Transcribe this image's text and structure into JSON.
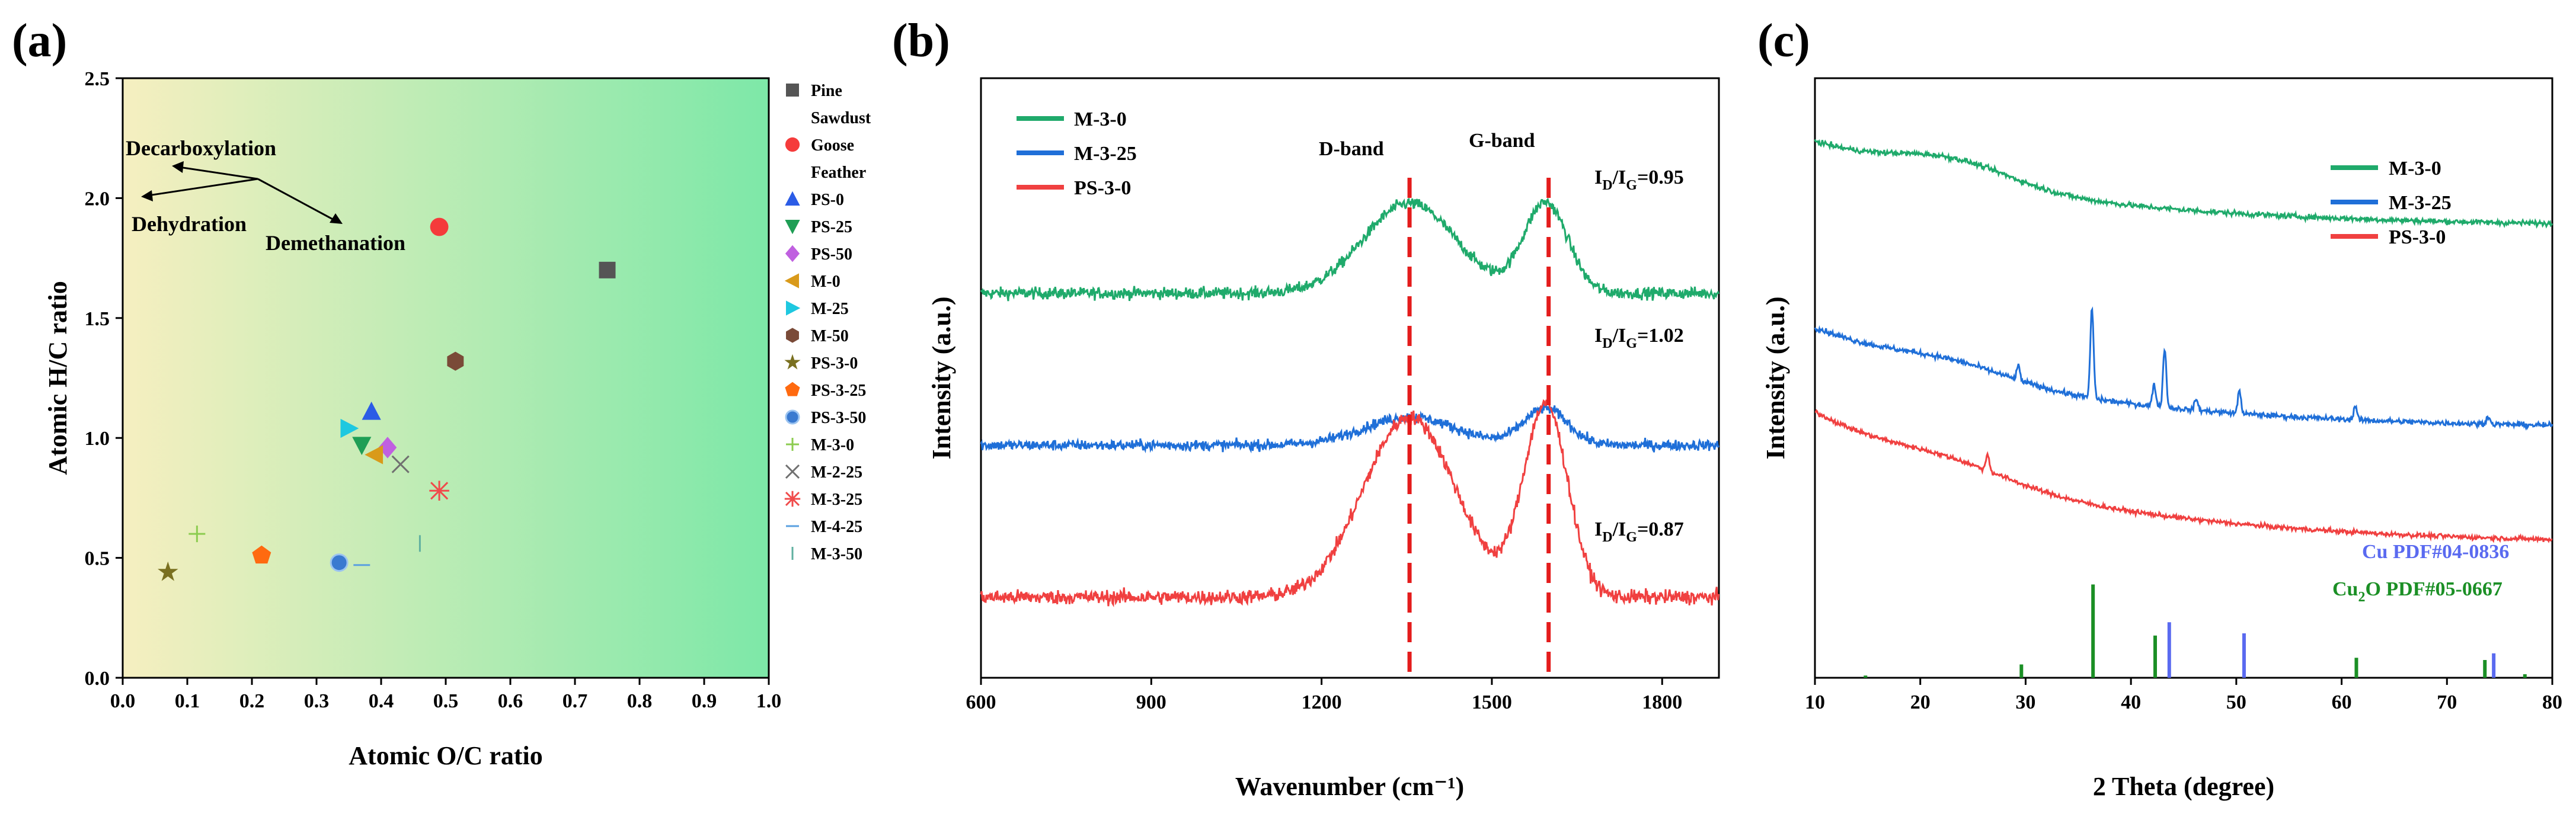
{
  "chart_data": [
    {
      "panel": "(a)",
      "type": "scatter",
      "title": "",
      "xlabel": "Atomic O/C ratio",
      "ylabel": "Atomic H/C ratio",
      "xlim": [
        0.0,
        1.0
      ],
      "ylim": [
        0.0,
        2.5
      ],
      "xticks": [
        "0.0",
        "0.1",
        "0.2",
        "0.3",
        "0.4",
        "0.5",
        "0.6",
        "0.7",
        "0.8",
        "0.9",
        "1.0"
      ],
      "yticks": [
        "0.0",
        "0.5",
        "1.0",
        "1.5",
        "2.0",
        "2.5"
      ],
      "background": {
        "from": "#f6efc0",
        "to": "#7de8a8"
      },
      "series": [
        {
          "name": "Pine Sawdust",
          "lines": [
            "Pine",
            "Sawdust"
          ],
          "marker": "square",
          "color": "#555555",
          "x": 0.75,
          "y": 1.7
        },
        {
          "name": "Goose Feather",
          "lines": [
            "Goose",
            "Feather"
          ],
          "marker": "circle",
          "color": "#f53b3b",
          "x": 0.49,
          "y": 1.88
        },
        {
          "name": "PS-0",
          "lines": [
            "PS-0"
          ],
          "marker": "triangle-up",
          "color": "#2b5ce6",
          "x": 0.385,
          "y": 1.11
        },
        {
          "name": "PS-25",
          "lines": [
            "PS-25"
          ],
          "marker": "triangle-down",
          "color": "#1f9e55",
          "x": 0.37,
          "y": 0.97
        },
        {
          "name": "PS-50",
          "lines": [
            "PS-50"
          ],
          "marker": "diamond",
          "color": "#c060e0",
          "x": 0.41,
          "y": 0.96
        },
        {
          "name": "M-0",
          "lines": [
            "M-0"
          ],
          "marker": "triangle-left",
          "color": "#d99a1a",
          "x": 0.39,
          "y": 0.93
        },
        {
          "name": "M-25",
          "lines": [
            "M-25"
          ],
          "marker": "triangle-right",
          "color": "#1ec8e0",
          "x": 0.35,
          "y": 1.04
        },
        {
          "name": "M-50",
          "lines": [
            "M-50"
          ],
          "marker": "hexagon",
          "color": "#7a4a38",
          "x": 0.515,
          "y": 1.32
        },
        {
          "name": "PS-3-0",
          "lines": [
            "PS-3-0"
          ],
          "marker": "star",
          "color": "#7a7020",
          "x": 0.07,
          "y": 0.44
        },
        {
          "name": "PS-3-25",
          "lines": [
            "PS-3-25"
          ],
          "marker": "pentagon",
          "color": "#ff6a10",
          "x": 0.215,
          "y": 0.51
        },
        {
          "name": "PS-3-50",
          "lines": [
            "PS-3-50"
          ],
          "marker": "sphere",
          "color": "#3a7ad0",
          "x": 0.335,
          "y": 0.48
        },
        {
          "name": "M-3-0",
          "lines": [
            "M-3-0"
          ],
          "marker": "plus",
          "color": "#8ccc50",
          "x": 0.115,
          "y": 0.6
        },
        {
          "name": "M-2-25",
          "lines": [
            "M-2-25"
          ],
          "marker": "x",
          "color": "#707070",
          "x": 0.43,
          "y": 0.89
        },
        {
          "name": "M-3-25",
          "lines": [
            "M-3-25"
          ],
          "marker": "asterisk",
          "color": "#f04b4b",
          "x": 0.49,
          "y": 0.78
        },
        {
          "name": "M-4-25",
          "lines": [
            "M-4-25"
          ],
          "marker": "hline",
          "color": "#5aa0e0",
          "x": 0.37,
          "y": 0.47
        },
        {
          "name": "M-3-50",
          "lines": [
            "M-3-50"
          ],
          "marker": "vline",
          "color": "#60b0a0",
          "x": 0.46,
          "y": 0.56
        }
      ],
      "annotations": [
        "Decarboxylation",
        "Dehydration",
        "Demethanation"
      ]
    },
    {
      "panel": "(b)",
      "type": "line",
      "xlabel": "Wavenumber (cm⁻¹)",
      "ylabel": "Intensity (a.u.)",
      "xlim": [
        600,
        1900
      ],
      "xticks": [
        "600",
        "900",
        "1200",
        "1500",
        "1800"
      ],
      "band_lines": [
        1355,
        1600
      ],
      "band_labels": [
        "D-band",
        "G-band"
      ],
      "ratio_base": "I",
      "ratio_sub_d": "D",
      "ratio_sub_g": "G",
      "series": [
        {
          "name": "M-3-0",
          "color": "#1faa6b",
          "baseline": 6.2,
          "d_height": 1.6,
          "g_height": 1.6,
          "noise": 0.18,
          "ratio": "=0.95"
        },
        {
          "name": "M-3-25",
          "color": "#1f6fd8",
          "baseline": 3.5,
          "d_height": 0.5,
          "g_height": 0.65,
          "noise": 0.16,
          "ratio": "=1.02"
        },
        {
          "name": "PS-3-0",
          "color": "#f04040",
          "baseline": 0.8,
          "d_height": 3.2,
          "g_height": 3.4,
          "noise": 0.22,
          "ratio": "=0.87"
        }
      ]
    },
    {
      "panel": "(c)",
      "type": "line",
      "xlabel": "2 Theta (degree)",
      "ylabel": "Intensity (a.u.)",
      "xlim": [
        10,
        80
      ],
      "xticks": [
        "10",
        "20",
        "30",
        "40",
        "50",
        "60",
        "70",
        "80"
      ],
      "series": [
        {
          "name": "M-3-0",
          "color": "#1faa6b",
          "start": 9.3,
          "end": 7.8,
          "hump": 0.4,
          "noise": 0.08,
          "peaks": []
        },
        {
          "name": "M-3-25",
          "color": "#1f6fd8",
          "start": 6.0,
          "end": 4.2,
          "hump": 0.25,
          "noise": 0.08,
          "peaks": [
            [
              29.3,
              0.25
            ],
            [
              36.3,
              1.6
            ],
            [
              42.2,
              0.4
            ],
            [
              43.2,
              1.05
            ],
            [
              46.2,
              0.2
            ],
            [
              50.3,
              0.4
            ],
            [
              61.3,
              0.25
            ],
            [
              73.9,
              0.15
            ]
          ]
        },
        {
          "name": "PS-3-0",
          "color": "#f04040",
          "start": 4.5,
          "end": 2.15,
          "hump": 0.25,
          "noise": 0.07,
          "peaks": [
            [
              26.4,
              0.3
            ]
          ]
        }
      ],
      "reference_cu": {
        "label": "Cu PDF#04-0836",
        "color": "#5a6af0",
        "peaks": [
          [
            43.3,
            1.25
          ],
          [
            50.4,
            1.0
          ],
          [
            74.1,
            0.55
          ]
        ]
      },
      "reference_cu2o": {
        "label_pre": "Cu",
        "label_sub": "2",
        "label_post": "O PDF#05-0667",
        "color": "#1b8f25",
        "peaks": [
          [
            29.6,
            0.3
          ],
          [
            36.4,
            2.1
          ],
          [
            42.3,
            0.95
          ],
          [
            61.4,
            0.45
          ],
          [
            73.6,
            0.4
          ],
          [
            77.4,
            0.08
          ],
          [
            14.8,
            0.05
          ]
        ]
      }
    }
  ]
}
